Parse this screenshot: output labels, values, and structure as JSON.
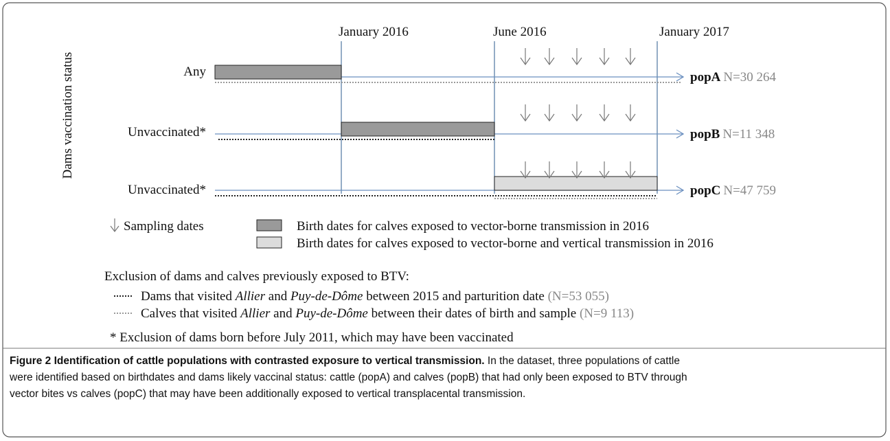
{
  "figure": {
    "axis_label": "Dams vaccination status",
    "timeline": [
      "January 2016",
      "June 2016",
      "January 2017"
    ],
    "rows": [
      {
        "label": "Any",
        "pop": "popA",
        "n": "N=30 264"
      },
      {
        "label": "Unvaccinated*",
        "pop": "popB",
        "n": "N=11 348"
      },
      {
        "label": "Unvaccinated*",
        "pop": "popC",
        "n": "N=47 759"
      }
    ],
    "legend": {
      "sampling": "Sampling dates",
      "dark": "Birth dates for calves exposed to vector-borne transmission in 2016",
      "light": "Birth dates for calves exposed to vector-borne and vertical transmission in 2016"
    },
    "exclusion": {
      "title": "Exclusion of dams and calves previously exposed to BTV:",
      "items": [
        {
          "start": "Dams that visited",
          "place1": "Allier",
          "and": "and",
          "place2": "Puy-de-Dôme",
          "end": "between 2015 and parturition date",
          "n": "(N=53 055)"
        },
        {
          "start": "Calves that visited",
          "place1": "Allier",
          "and": "and",
          "place2": "Puy-de-Dôme",
          "end": "between their dates of birth and sample",
          "n": "(N=9 113)"
        }
      ]
    },
    "footnote": "* Exclusion of dams born before July 2011, which may have been vaccinated"
  },
  "caption": {
    "label": "Figure 2",
    "title": "Identification of cattle populations with contrasted exposure to vertical transmission.",
    "lines": [
      "In the dataset, three populations of cattle",
      "were identified based on birthdates and dams likely vaccinal status: cattle (popA) and calves (popB) that had only been exposed to BTV through",
      "vector bites vs calves (popC) that may have been additionally exposed to vertical transplacental transmission."
    ]
  }
}
